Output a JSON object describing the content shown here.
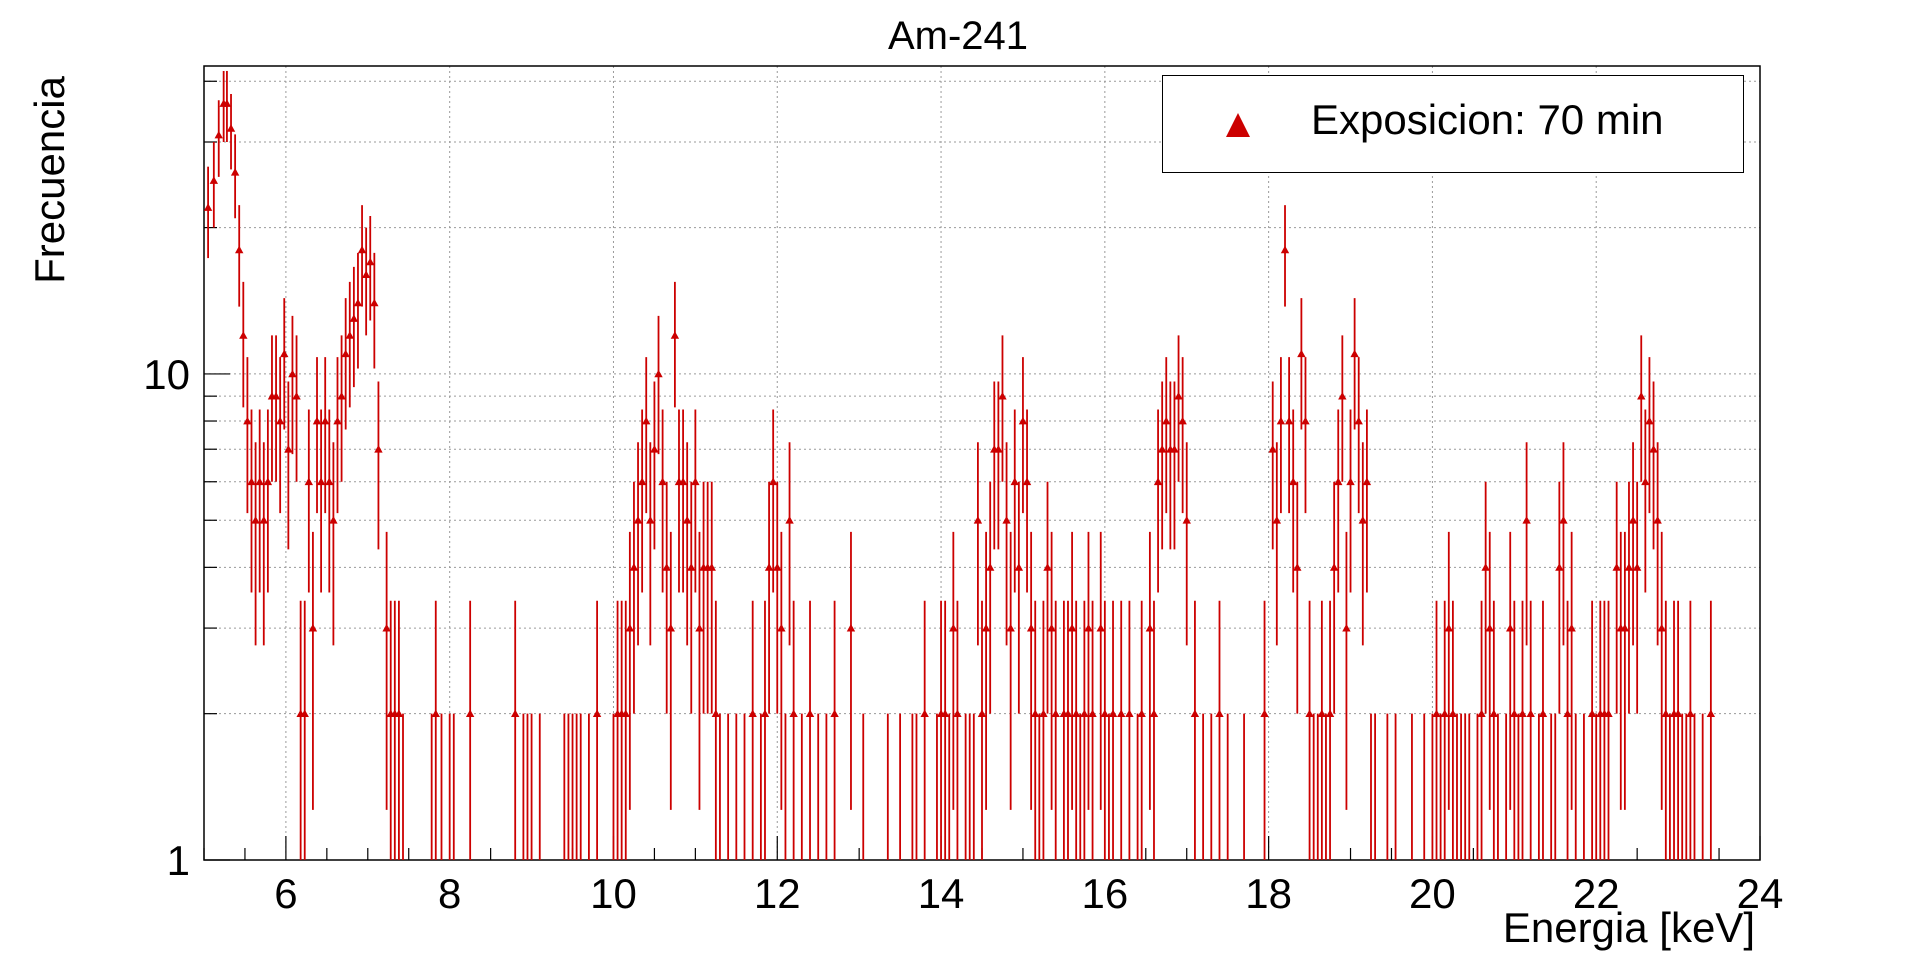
{
  "chart_data": {
    "type": "scatter",
    "title": "Am-241",
    "xlabel": "Energia [keV]",
    "ylabel": "Frecuencia",
    "xlim": [
      5.0,
      24.0
    ],
    "ylim": [
      1,
      43
    ],
    "y_scale": "log",
    "grid": true,
    "legend_position": "top-right",
    "x_ticks": [
      "6",
      "8",
      "10",
      "12",
      "14",
      "16",
      "18",
      "20",
      "22",
      "24"
    ],
    "y_ticks": [
      "1",
      "10"
    ],
    "series": [
      {
        "name": "Exposicion: 70 min",
        "marker": "triangle",
        "color": "#cc0000",
        "error_bars": "poisson",
        "points": [
          [
            5.05,
            22
          ],
          [
            5.12,
            25
          ],
          [
            5.18,
            31
          ],
          [
            5.24,
            36
          ],
          [
            5.28,
            36
          ],
          [
            5.33,
            32
          ],
          [
            5.38,
            26
          ],
          [
            5.43,
            18
          ],
          [
            5.48,
            12
          ],
          [
            5.53,
            8
          ],
          [
            5.58,
            6
          ],
          [
            5.63,
            5
          ],
          [
            5.68,
            6
          ],
          [
            5.73,
            5
          ],
          [
            5.78,
            6
          ],
          [
            5.83,
            9
          ],
          [
            5.88,
            9
          ],
          [
            5.93,
            8
          ],
          [
            5.98,
            11
          ],
          [
            6.03,
            7
          ],
          [
            6.08,
            10
          ],
          [
            6.13,
            9
          ],
          [
            6.18,
            2
          ],
          [
            6.23,
            2
          ],
          [
            6.28,
            6
          ],
          [
            6.33,
            3
          ],
          [
            6.38,
            8
          ],
          [
            6.43,
            6
          ],
          [
            6.48,
            8
          ],
          [
            6.53,
            6
          ],
          [
            6.58,
            5
          ],
          [
            6.63,
            8
          ],
          [
            6.68,
            9
          ],
          [
            6.73,
            11
          ],
          [
            6.78,
            12
          ],
          [
            6.83,
            13
          ],
          [
            6.88,
            14
          ],
          [
            6.93,
            18
          ],
          [
            6.98,
            16
          ],
          [
            7.03,
            17
          ],
          [
            7.08,
            14
          ],
          [
            7.13,
            7
          ],
          [
            7.23,
            3
          ],
          [
            7.28,
            2
          ],
          [
            7.33,
            2
          ],
          [
            7.38,
            2
          ],
          [
            7.43,
            1
          ],
          [
            7.78,
            1
          ],
          [
            7.83,
            2
          ],
          [
            7.9,
            1
          ],
          [
            8.0,
            1
          ],
          [
            8.05,
            1
          ],
          [
            8.25,
            2
          ],
          [
            8.8,
            2
          ],
          [
            8.9,
            1
          ],
          [
            8.95,
            1
          ],
          [
            9.0,
            1
          ],
          [
            9.1,
            1
          ],
          [
            9.4,
            1
          ],
          [
            9.45,
            1
          ],
          [
            9.5,
            1
          ],
          [
            9.55,
            1
          ],
          [
            9.6,
            1
          ],
          [
            9.7,
            1
          ],
          [
            9.8,
            2
          ],
          [
            10.0,
            1
          ],
          [
            10.05,
            2
          ],
          [
            10.1,
            2
          ],
          [
            10.15,
            2
          ],
          [
            10.2,
            3
          ],
          [
            10.25,
            4
          ],
          [
            10.3,
            5
          ],
          [
            10.35,
            6
          ],
          [
            10.4,
            8
          ],
          [
            10.45,
            5
          ],
          [
            10.5,
            7
          ],
          [
            10.55,
            10
          ],
          [
            10.6,
            6
          ],
          [
            10.65,
            4
          ],
          [
            10.7,
            3
          ],
          [
            10.75,
            12
          ],
          [
            10.8,
            6
          ],
          [
            10.85,
            6
          ],
          [
            10.9,
            5
          ],
          [
            10.95,
            4
          ],
          [
            11.0,
            6
          ],
          [
            11.05,
            3
          ],
          [
            11.1,
            4
          ],
          [
            11.15,
            4
          ],
          [
            11.2,
            4
          ],
          [
            11.25,
            2
          ],
          [
            11.3,
            1
          ],
          [
            11.4,
            1
          ],
          [
            11.5,
            1
          ],
          [
            11.6,
            1
          ],
          [
            11.7,
            2
          ],
          [
            11.8,
            1
          ],
          [
            11.85,
            2
          ],
          [
            11.9,
            4
          ],
          [
            11.95,
            6
          ],
          [
            12.0,
            4
          ],
          [
            12.05,
            3
          ],
          [
            12.1,
            1
          ],
          [
            12.15,
            5
          ],
          [
            12.2,
            2
          ],
          [
            12.3,
            1
          ],
          [
            12.4,
            2
          ],
          [
            12.5,
            1
          ],
          [
            12.6,
            1
          ],
          [
            12.7,
            2
          ],
          [
            12.9,
            3
          ],
          [
            13.05,
            1
          ],
          [
            13.35,
            1
          ],
          [
            13.5,
            1
          ],
          [
            13.65,
            1
          ],
          [
            13.7,
            1
          ],
          [
            13.8,
            2
          ],
          [
            13.95,
            1
          ],
          [
            14.0,
            2
          ],
          [
            14.05,
            2
          ],
          [
            14.1,
            1
          ],
          [
            14.15,
            3
          ],
          [
            14.2,
            2
          ],
          [
            14.3,
            1
          ],
          [
            14.35,
            1
          ],
          [
            14.4,
            1
          ],
          [
            14.45,
            5
          ],
          [
            14.5,
            2
          ],
          [
            14.55,
            3
          ],
          [
            14.6,
            4
          ],
          [
            14.65,
            7
          ],
          [
            14.7,
            7
          ],
          [
            14.75,
            9
          ],
          [
            14.8,
            5
          ],
          [
            14.85,
            3
          ],
          [
            14.9,
            6
          ],
          [
            14.95,
            4
          ],
          [
            15.0,
            8
          ],
          [
            15.05,
            6
          ],
          [
            15.1,
            3
          ],
          [
            15.15,
            2
          ],
          [
            15.2,
            1
          ],
          [
            15.25,
            2
          ],
          [
            15.3,
            4
          ],
          [
            15.35,
            3
          ],
          [
            15.4,
            2
          ],
          [
            15.5,
            2
          ],
          [
            15.55,
            2
          ],
          [
            15.6,
            3
          ],
          [
            15.65,
            2
          ],
          [
            15.7,
            1
          ],
          [
            15.75,
            2
          ],
          [
            15.8,
            3
          ],
          [
            15.85,
            2
          ],
          [
            15.95,
            3
          ],
          [
            16.0,
            2
          ],
          [
            16.05,
            1
          ],
          [
            16.1,
            2
          ],
          [
            16.2,
            2
          ],
          [
            16.3,
            2
          ],
          [
            16.4,
            1
          ],
          [
            16.45,
            2
          ],
          [
            16.55,
            3
          ],
          [
            16.6,
            2
          ],
          [
            16.65,
            6
          ],
          [
            16.7,
            7
          ],
          [
            16.75,
            8
          ],
          [
            16.8,
            7
          ],
          [
            16.85,
            7
          ],
          [
            16.9,
            9
          ],
          [
            16.95,
            8
          ],
          [
            17.0,
            5
          ],
          [
            17.1,
            2
          ],
          [
            17.2,
            1
          ],
          [
            17.3,
            1
          ],
          [
            17.4,
            2
          ],
          [
            17.5,
            1
          ],
          [
            17.7,
            1
          ],
          [
            17.95,
            2
          ],
          [
            18.05,
            7
          ],
          [
            18.1,
            5
          ],
          [
            18.15,
            8
          ],
          [
            18.2,
            18
          ],
          [
            18.25,
            8
          ],
          [
            18.3,
            6
          ],
          [
            18.35,
            4
          ],
          [
            18.4,
            11
          ],
          [
            18.45,
            8
          ],
          [
            18.5,
            2
          ],
          [
            18.55,
            1
          ],
          [
            18.6,
            1
          ],
          [
            18.65,
            2
          ],
          [
            18.7,
            1
          ],
          [
            18.75,
            2
          ],
          [
            18.8,
            4
          ],
          [
            18.85,
            6
          ],
          [
            18.9,
            9
          ],
          [
            18.95,
            3
          ],
          [
            19.0,
            6
          ],
          [
            19.05,
            11
          ],
          [
            19.1,
            8
          ],
          [
            19.15,
            5
          ],
          [
            19.2,
            6
          ],
          [
            19.25,
            1
          ],
          [
            19.3,
            1
          ],
          [
            19.45,
            1
          ],
          [
            19.55,
            1
          ],
          [
            19.75,
            1
          ],
          [
            19.9,
            1
          ],
          [
            20.0,
            1
          ],
          [
            20.05,
            2
          ],
          [
            20.1,
            1
          ],
          [
            20.15,
            2
          ],
          [
            20.2,
            3
          ],
          [
            20.25,
            2
          ],
          [
            20.3,
            1
          ],
          [
            20.35,
            1
          ],
          [
            20.4,
            1
          ],
          [
            20.45,
            1
          ],
          [
            20.55,
            1
          ],
          [
            20.6,
            2
          ],
          [
            20.65,
            4
          ],
          [
            20.7,
            3
          ],
          [
            20.75,
            2
          ],
          [
            20.8,
            1
          ],
          [
            20.9,
            1
          ],
          [
            20.95,
            3
          ],
          [
            21.0,
            2
          ],
          [
            21.05,
            1
          ],
          [
            21.1,
            2
          ],
          [
            21.15,
            5
          ],
          [
            21.2,
            2
          ],
          [
            21.3,
            1
          ],
          [
            21.35,
            2
          ],
          [
            21.45,
            1
          ],
          [
            21.5,
            1
          ],
          [
            21.55,
            4
          ],
          [
            21.6,
            5
          ],
          [
            21.65,
            2
          ],
          [
            21.7,
            3
          ],
          [
            21.75,
            1
          ],
          [
            21.85,
            1
          ],
          [
            21.95,
            2
          ],
          [
            22.0,
            1
          ],
          [
            22.05,
            2
          ],
          [
            22.1,
            2
          ],
          [
            22.15,
            2
          ],
          [
            22.25,
            4
          ],
          [
            22.3,
            3
          ],
          [
            22.35,
            3
          ],
          [
            22.4,
            4
          ],
          [
            22.45,
            5
          ],
          [
            22.5,
            4
          ],
          [
            22.55,
            9
          ],
          [
            22.6,
            6
          ],
          [
            22.65,
            8
          ],
          [
            22.7,
            7
          ],
          [
            22.75,
            5
          ],
          [
            22.8,
            3
          ],
          [
            22.85,
            2
          ],
          [
            22.9,
            1
          ],
          [
            22.95,
            2
          ],
          [
            23.0,
            2
          ],
          [
            23.05,
            1
          ],
          [
            23.1,
            1
          ],
          [
            23.15,
            2
          ],
          [
            23.2,
            1
          ],
          [
            23.3,
            1
          ],
          [
            23.4,
            2
          ]
        ]
      }
    ]
  }
}
